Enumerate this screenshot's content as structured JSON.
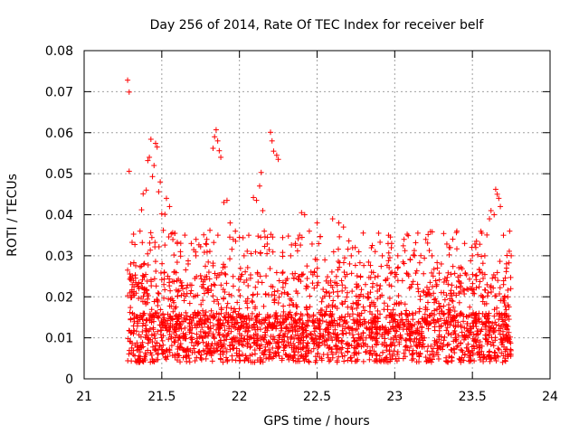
{
  "chart_data": {
    "type": "scatter",
    "title": "Day 256 of 2014, Rate Of TEC Index for receiver belf",
    "xlabel": "GPS time / hours",
    "ylabel": "ROTI / TECUs",
    "xlim": [
      21,
      24
    ],
    "ylim": [
      0,
      0.08
    ],
    "x_ticks": [
      21,
      21.5,
      22,
      22.5,
      23,
      23.5,
      24
    ],
    "x_tick_labels": [
      "21",
      "21.5",
      "22",
      "22.5",
      "23",
      "23.5",
      "24"
    ],
    "y_ticks": [
      0,
      0.01,
      0.02,
      0.03,
      0.04,
      0.05,
      0.06,
      0.07,
      0.08
    ],
    "y_tick_labels": [
      "0",
      "0.01",
      "0.02",
      "0.03",
      "0.04",
      "0.05",
      "0.06",
      "0.07",
      "0.08"
    ],
    "grid": true,
    "marker": "+",
    "color": "#ff0000",
    "x_range_of_data": [
      21.28,
      23.75
    ],
    "series": [
      {
        "name": "ROTI",
        "points": [
          [
            21.28,
            0.0728
          ],
          [
            21.29,
            0.0699
          ],
          [
            21.29,
            0.0506
          ],
          [
            21.28,
            0.0265
          ],
          [
            21.3,
            0.028
          ],
          [
            21.31,
            0.0251
          ],
          [
            21.34,
            0.023
          ],
          [
            21.36,
            0.036
          ],
          [
            21.37,
            0.0412
          ],
          [
            21.38,
            0.0451
          ],
          [
            21.4,
            0.046
          ],
          [
            21.41,
            0.0532
          ],
          [
            21.42,
            0.054
          ],
          [
            21.43,
            0.0584
          ],
          [
            21.44,
            0.0493
          ],
          [
            21.45,
            0.052
          ],
          [
            21.46,
            0.0574
          ],
          [
            21.47,
            0.0565
          ],
          [
            21.48,
            0.0456
          ],
          [
            21.49,
            0.048
          ],
          [
            21.5,
            0.0402
          ],
          [
            21.51,
            0.0362
          ],
          [
            21.52,
            0.0401
          ],
          [
            21.53,
            0.044
          ],
          [
            21.55,
            0.042
          ],
          [
            21.57,
            0.0356
          ],
          [
            21.6,
            0.033
          ],
          [
            21.62,
            0.031
          ],
          [
            21.67,
            0.028
          ],
          [
            21.72,
            0.03
          ],
          [
            21.75,
            0.0322
          ],
          [
            21.77,
            0.0351
          ],
          [
            21.79,
            0.034
          ],
          [
            21.81,
            0.0362
          ],
          [
            21.83,
            0.0562
          ],
          [
            21.84,
            0.059
          ],
          [
            21.85,
            0.0607
          ],
          [
            21.86,
            0.058
          ],
          [
            21.87,
            0.0556
          ],
          [
            21.88,
            0.054
          ],
          [
            21.9,
            0.043
          ],
          [
            21.92,
            0.0435
          ],
          [
            21.94,
            0.038
          ],
          [
            21.96,
            0.034
          ],
          [
            22.0,
            0.0345
          ],
          [
            22.03,
            0.03
          ],
          [
            22.06,
            0.035
          ],
          [
            22.09,
            0.0442
          ],
          [
            22.11,
            0.0435
          ],
          [
            22.13,
            0.047
          ],
          [
            22.14,
            0.0503
          ],
          [
            22.15,
            0.041
          ],
          [
            22.16,
            0.036
          ],
          [
            22.18,
            0.0345
          ],
          [
            22.2,
            0.0601
          ],
          [
            22.21,
            0.058
          ],
          [
            22.22,
            0.0555
          ],
          [
            22.24,
            0.0545
          ],
          [
            22.25,
            0.0535
          ],
          [
            22.28,
            0.026
          ],
          [
            22.33,
            0.03
          ],
          [
            22.36,
            0.033
          ],
          [
            22.4,
            0.0405
          ],
          [
            22.42,
            0.04
          ],
          [
            22.45,
            0.036
          ],
          [
            22.5,
            0.038
          ],
          [
            22.55,
            0.029
          ],
          [
            22.6,
            0.039
          ],
          [
            22.64,
            0.038
          ],
          [
            22.67,
            0.037
          ],
          [
            22.72,
            0.03
          ],
          [
            22.78,
            0.025
          ],
          [
            22.85,
            0.026
          ],
          [
            22.92,
            0.03
          ],
          [
            22.96,
            0.035
          ],
          [
            22.98,
            0.033
          ],
          [
            23.02,
            0.03
          ],
          [
            23.06,
            0.034
          ],
          [
            23.1,
            0.029
          ],
          [
            23.15,
            0.022
          ],
          [
            23.2,
            0.034
          ],
          [
            23.24,
            0.03
          ],
          [
            23.3,
            0.028
          ],
          [
            23.35,
            0.032
          ],
          [
            23.4,
            0.036
          ],
          [
            23.45,
            0.033
          ],
          [
            23.5,
            0.03
          ],
          [
            23.55,
            0.026
          ],
          [
            23.58,
            0.03
          ],
          [
            23.61,
            0.039
          ],
          [
            23.62,
            0.041
          ],
          [
            23.64,
            0.04
          ],
          [
            23.65,
            0.0462
          ],
          [
            23.66,
            0.045
          ],
          [
            23.67,
            0.044
          ],
          [
            23.68,
            0.042
          ],
          [
            23.7,
            0.035
          ],
          [
            23.72,
            0.027
          ],
          [
            23.74,
            0.036
          ],
          [
            23.75,
            0.03
          ]
        ]
      }
    ]
  }
}
